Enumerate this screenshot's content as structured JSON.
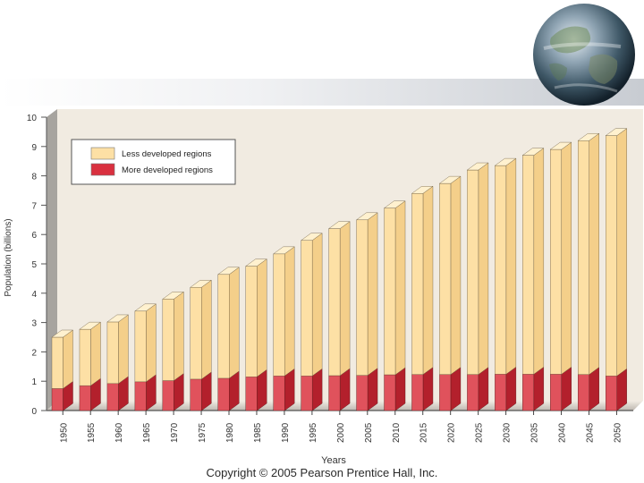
{
  "chart_data": {
    "type": "bar",
    "stacked": true,
    "categories": [
      "1950",
      "1955",
      "1960",
      "1965",
      "1970",
      "1975",
      "1980",
      "1985",
      "1990",
      "1995",
      "2000",
      "2005",
      "2010",
      "2015",
      "2020",
      "2025",
      "2030",
      "2035",
      "2040",
      "2045",
      "2050"
    ],
    "series": [
      {
        "name": "More developed regions",
        "color": "#d9303f",
        "values": [
          0.75,
          0.85,
          0.92,
          0.98,
          1.02,
          1.07,
          1.1,
          1.15,
          1.18,
          1.18,
          1.19,
          1.2,
          1.22,
          1.23,
          1.23,
          1.23,
          1.24,
          1.24,
          1.24,
          1.23,
          1.18
        ]
      },
      {
        "name": "Less developed regions",
        "color": "#fde0a5",
        "values": [
          1.75,
          1.92,
          2.1,
          2.41,
          2.78,
          3.13,
          3.54,
          3.77,
          4.16,
          4.62,
          5.01,
          5.3,
          5.68,
          6.17,
          6.51,
          6.97,
          7.11,
          7.46,
          7.66,
          7.97,
          8.19
        ]
      }
    ],
    "totals": [
      2.5,
      2.77,
      3.02,
      3.39,
      3.8,
      4.2,
      4.64,
      4.92,
      5.34,
      5.8,
      6.2,
      6.5,
      6.9,
      7.4,
      7.74,
      8.2,
      8.35,
      8.7,
      8.9,
      9.2,
      9.37
    ],
    "xlabel": "Years",
    "ylabel": "Population (billions)",
    "ylim": [
      0,
      10
    ],
    "yticks": [
      0,
      1,
      2,
      3,
      4,
      5,
      6,
      7,
      8,
      9,
      10
    ],
    "legend": {
      "position": "top-left",
      "entries": [
        "Less developed regions",
        "More developed regions"
      ]
    }
  },
  "footer": {
    "copyright": "Copyright © 2005 Pearson Prentice Hall, Inc."
  },
  "decor": {
    "globe": "earth-globe-image"
  }
}
